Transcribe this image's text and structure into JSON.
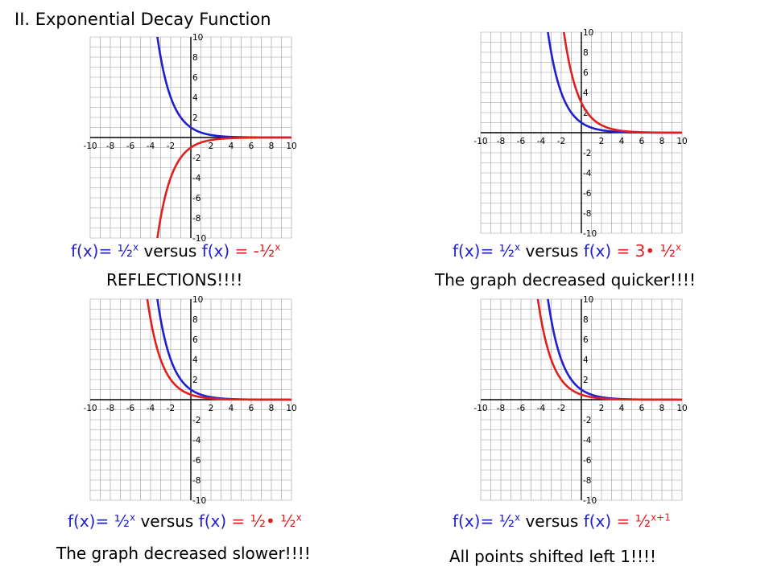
{
  "title": "II. Exponential Decay Function",
  "colors": {
    "series_a": "#1f1fd0",
    "series_b": "#e01f1f",
    "grid": "#9a9a9a"
  },
  "panels": [
    {
      "caption": {
        "lhs": "f(x)=",
        "base": "½",
        "exp": "x",
        "versus": " versus ",
        "rhs_fx": "f(x)",
        "rhs_eq": " = ",
        "rhs_coef": "-",
        "rhs_base": "½",
        "rhs_exp": "x"
      },
      "note": "REFLECTIONS!!!!"
    },
    {
      "caption": {
        "lhs": "f(x)=",
        "base": "½",
        "exp": "x",
        "versus": " versus ",
        "rhs_fx": "f(x)",
        "rhs_eq": " = ",
        "rhs_coef": "3• ",
        "rhs_base": "½",
        "rhs_exp": "x"
      },
      "note": "The graph  decreased quicker!!!!"
    },
    {
      "caption": {
        "lhs": "f(x)=",
        "base": "½",
        "exp": "x",
        "versus": " versus ",
        "rhs_fx": "f(x)",
        "rhs_eq": " = ",
        "rhs_coef": "½• ",
        "rhs_base": "½",
        "rhs_exp": "x"
      },
      "note": "The graph  decreased slower!!!!"
    },
    {
      "caption": {
        "lhs": "f(x)=",
        "base": "½",
        "exp": "x",
        "versus": " versus ",
        "rhs_fx": "f(x)",
        "rhs_eq": " = ",
        "rhs_coef": "",
        "rhs_base": "½",
        "rhs_exp": "x+1"
      },
      "note": "All points shifted left 1!!!!"
    }
  ],
  "chart_data": [
    {
      "type": "line",
      "xlim": [
        -10,
        10
      ],
      "ylim": [
        -10,
        10
      ],
      "grid": true,
      "x_ticks": [
        "-10",
        "-8",
        "-6",
        "-4",
        "-2",
        "2",
        "4",
        "6",
        "8",
        "10"
      ],
      "y_ticks": [
        "10",
        "8",
        "6",
        "4",
        "2",
        "-2",
        "-4",
        "-6",
        "-8",
        "-10"
      ],
      "series": [
        {
          "color": "#1f1fd0",
          "formula": {
            "coef": 1,
            "shift": 0
          }
        },
        {
          "color": "#e01f1f",
          "formula": {
            "coef": -1,
            "shift": 0
          }
        }
      ]
    },
    {
      "type": "line",
      "xlim": [
        -10,
        10
      ],
      "ylim": [
        -10,
        10
      ],
      "grid": true,
      "x_ticks": [
        "-10",
        "-8",
        "-6",
        "-4",
        "-2",
        "2",
        "4",
        "6",
        "8",
        "10"
      ],
      "y_ticks": [
        "10",
        "8",
        "6",
        "4",
        "2",
        "-2",
        "-4",
        "-6",
        "-8",
        "-10"
      ],
      "series": [
        {
          "color": "#1f1fd0",
          "formula": {
            "coef": 1,
            "shift": 0
          }
        },
        {
          "color": "#e01f1f",
          "formula": {
            "coef": 3,
            "shift": 0
          }
        }
      ]
    },
    {
      "type": "line",
      "xlim": [
        -10,
        10
      ],
      "ylim": [
        -10,
        10
      ],
      "grid": true,
      "x_ticks": [
        "-10",
        "-8",
        "-6",
        "-4",
        "-2",
        "2",
        "4",
        "6",
        "8",
        "10"
      ],
      "y_ticks": [
        "10",
        "8",
        "6",
        "4",
        "2",
        "-2",
        "-4",
        "-6",
        "-8",
        "-10"
      ],
      "series": [
        {
          "color": "#1f1fd0",
          "formula": {
            "coef": 1,
            "shift": 0
          }
        },
        {
          "color": "#e01f1f",
          "formula": {
            "coef": 0.5,
            "shift": 0
          }
        }
      ]
    },
    {
      "type": "line",
      "xlim": [
        -10,
        10
      ],
      "ylim": [
        -10,
        10
      ],
      "grid": true,
      "x_ticks": [
        "-10",
        "-8",
        "-6",
        "-4",
        "-2",
        "2",
        "4",
        "6",
        "8",
        "10"
      ],
      "y_ticks": [
        "10",
        "8",
        "6",
        "4",
        "2",
        "-2",
        "-4",
        "-6",
        "-8",
        "-10"
      ],
      "series": [
        {
          "color": "#1f1fd0",
          "formula": {
            "coef": 1,
            "shift": 0
          }
        },
        {
          "color": "#e01f1f",
          "formula": {
            "coef": 1,
            "shift": 1
          }
        }
      ]
    }
  ]
}
